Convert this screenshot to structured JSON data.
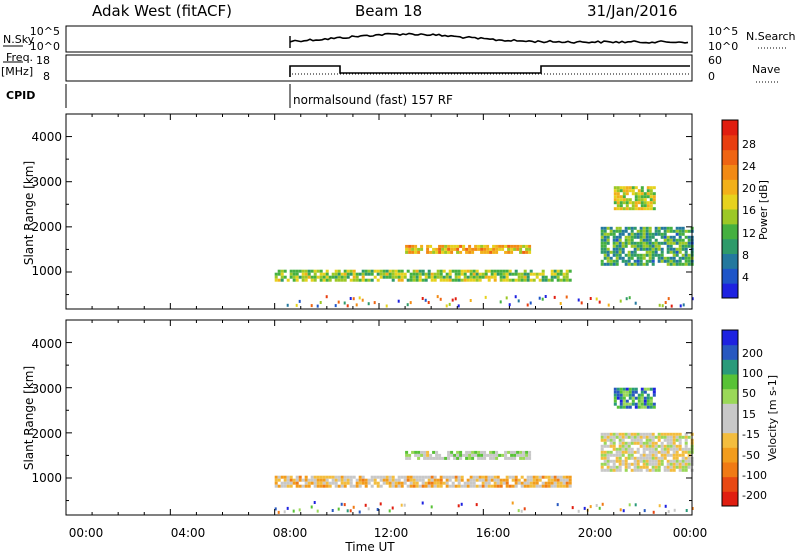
{
  "header": {
    "left": "Adak West (fitACF)",
    "center": "Beam 18",
    "right": "31/Jan/2016"
  },
  "strip1": {
    "label_left": "N.Sky",
    "ticks_left": [
      "10^5",
      "10^0"
    ],
    "ticks_right": [
      "10^5",
      "10^0"
    ],
    "label_right": "N.Search"
  },
  "strip2": {
    "label_left_1": "Freq.",
    "label_left_2": "[MHz]",
    "ticks_left": [
      "18",
      "8"
    ],
    "ticks_right": [
      "60",
      "0"
    ],
    "label_right": "Nave"
  },
  "cpid": {
    "label": "CPID",
    "text": "normalsound (fast) 157 RF"
  },
  "xaxis": {
    "ticks": [
      "00:00",
      "04:00",
      "08:00",
      "12:00",
      "16:00",
      "20:00",
      "00:00"
    ],
    "label": "Time UT"
  },
  "colors": {
    "axis": "#000000",
    "frame": "#000000"
  },
  "chart_data": [
    {
      "type": "heatmap",
      "title": "Power",
      "ylabel": "Slant Range [km]",
      "yticks": [
        "1000",
        "2000",
        "3000",
        "4000"
      ],
      "ylim": [
        180,
        4500
      ],
      "xlim_hours": [
        0,
        24
      ],
      "colorbar": {
        "label": "Power [dB]",
        "ticks": [
          "4",
          "8",
          "12",
          "16",
          "20",
          "24",
          "28"
        ],
        "range": [
          0,
          32
        ],
        "colors": [
          "#1e22e0",
          "#1e55c8",
          "#23789e",
          "#2e9a6a",
          "#45b040",
          "#9cc826",
          "#e6d21e",
          "#f2b01a",
          "#f28a14",
          "#ee6412",
          "#e83e10",
          "#e01e10"
        ]
      },
      "bands": [
        {
          "t": [
            8.0,
            19.3
          ],
          "range_km": [
            800,
            1050
          ],
          "level_dB": 14
        },
        {
          "t": [
            13.0,
            17.8
          ],
          "range_km": [
            1450,
            1600
          ],
          "level_dB": 20
        },
        {
          "t": [
            20.5,
            24.0
          ],
          "range_km": [
            1200,
            2000
          ],
          "level_dB": 10
        },
        {
          "t": [
            21.0,
            22.5
          ],
          "range_km": [
            2400,
            2900
          ],
          "level_dB": 16
        }
      ]
    },
    {
      "type": "heatmap",
      "title": "Velocity",
      "ylabel": "Slant Range [km]",
      "yticks": [
        "1000",
        "2000",
        "3000",
        "4000"
      ],
      "ylim": [
        180,
        4500
      ],
      "xlim_hours": [
        0,
        24
      ],
      "colorbar": {
        "label": "Velocity [m s-1]",
        "ticks": [
          "200",
          "100",
          "50",
          "15",
          "-15",
          "-50",
          "-100",
          "-200"
        ],
        "range": [
          -250,
          250
        ],
        "colors": [
          "#e01e10",
          "#e84812",
          "#f07a14",
          "#f29c1c",
          "#f3bd3e",
          "#c8c8c8",
          "#c8c8c8",
          "#9ad858",
          "#58c236",
          "#2a9a7a",
          "#2858c0",
          "#1e22e0"
        ]
      },
      "bands": [
        {
          "t": [
            8.0,
            19.3
          ],
          "range_km": [
            800,
            1050
          ],
          "level_ms": -60
        },
        {
          "t": [
            13.0,
            17.8
          ],
          "range_km": [
            1450,
            1600
          ],
          "level_ms": 40
        },
        {
          "t": [
            20.5,
            24.0
          ],
          "range_km": [
            1200,
            2000
          ],
          "level_ms": 0
        },
        {
          "t": [
            21.0,
            22.5
          ],
          "range_km": [
            2600,
            3000
          ],
          "level_ms": 150
        }
      ]
    }
  ]
}
